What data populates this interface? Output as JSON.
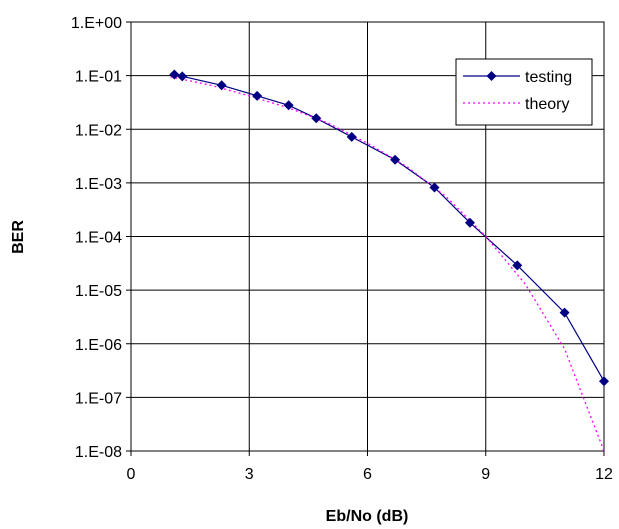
{
  "chart_data": {
    "type": "line",
    "xlabel": "Eb/No (dB)",
    "ylabel": "BER",
    "xlim": [
      0,
      12
    ],
    "ylim": [
      1e-08,
      1
    ],
    "y_scale": "log",
    "x_ticks": [
      0,
      3,
      6,
      9,
      12
    ],
    "x_tick_labels": [
      "0",
      "3",
      "6",
      "9",
      "12"
    ],
    "y_ticks": [
      1,
      0.1,
      0.01,
      0.001,
      0.0001,
      1e-05,
      1e-06,
      1e-07,
      1e-08
    ],
    "y_tick_labels": [
      "1.E+00",
      "1.E-01",
      "1.E-02",
      "1.E-03",
      "1.E-04",
      "1.E-05",
      "1.E-06",
      "1.E-07",
      "1.E-08"
    ],
    "grid": true,
    "legend_position": "top-right",
    "series": [
      {
        "name": "testing",
        "color": "#000080",
        "marker": "diamond",
        "line_style": "solid",
        "x": [
          1.1,
          1.3,
          2.3,
          3.2,
          4.0,
          4.7,
          5.6,
          6.7,
          7.7,
          8.6,
          9.8,
          11.0,
          12.0
        ],
        "y": [
          0.105,
          0.097,
          0.066,
          0.042,
          0.028,
          0.016,
          0.0072,
          0.0027,
          0.00082,
          0.00018,
          2.9e-05,
          3.8e-06,
          2e-07
        ]
      },
      {
        "name": "theory",
        "color": "#ff00ff",
        "marker": "none",
        "line_style": "dotted",
        "x": [
          1.0,
          2.0,
          3.0,
          4.0,
          5.0,
          6.0,
          7.0,
          8.0,
          9.0,
          10.0,
          11.0,
          12.0
        ],
        "y": [
          0.095,
          0.067,
          0.042,
          0.025,
          0.013,
          0.0055,
          0.002,
          0.00055,
          0.0001,
          1.3e-05,
          8e-07,
          1e-08
        ]
      }
    ]
  }
}
